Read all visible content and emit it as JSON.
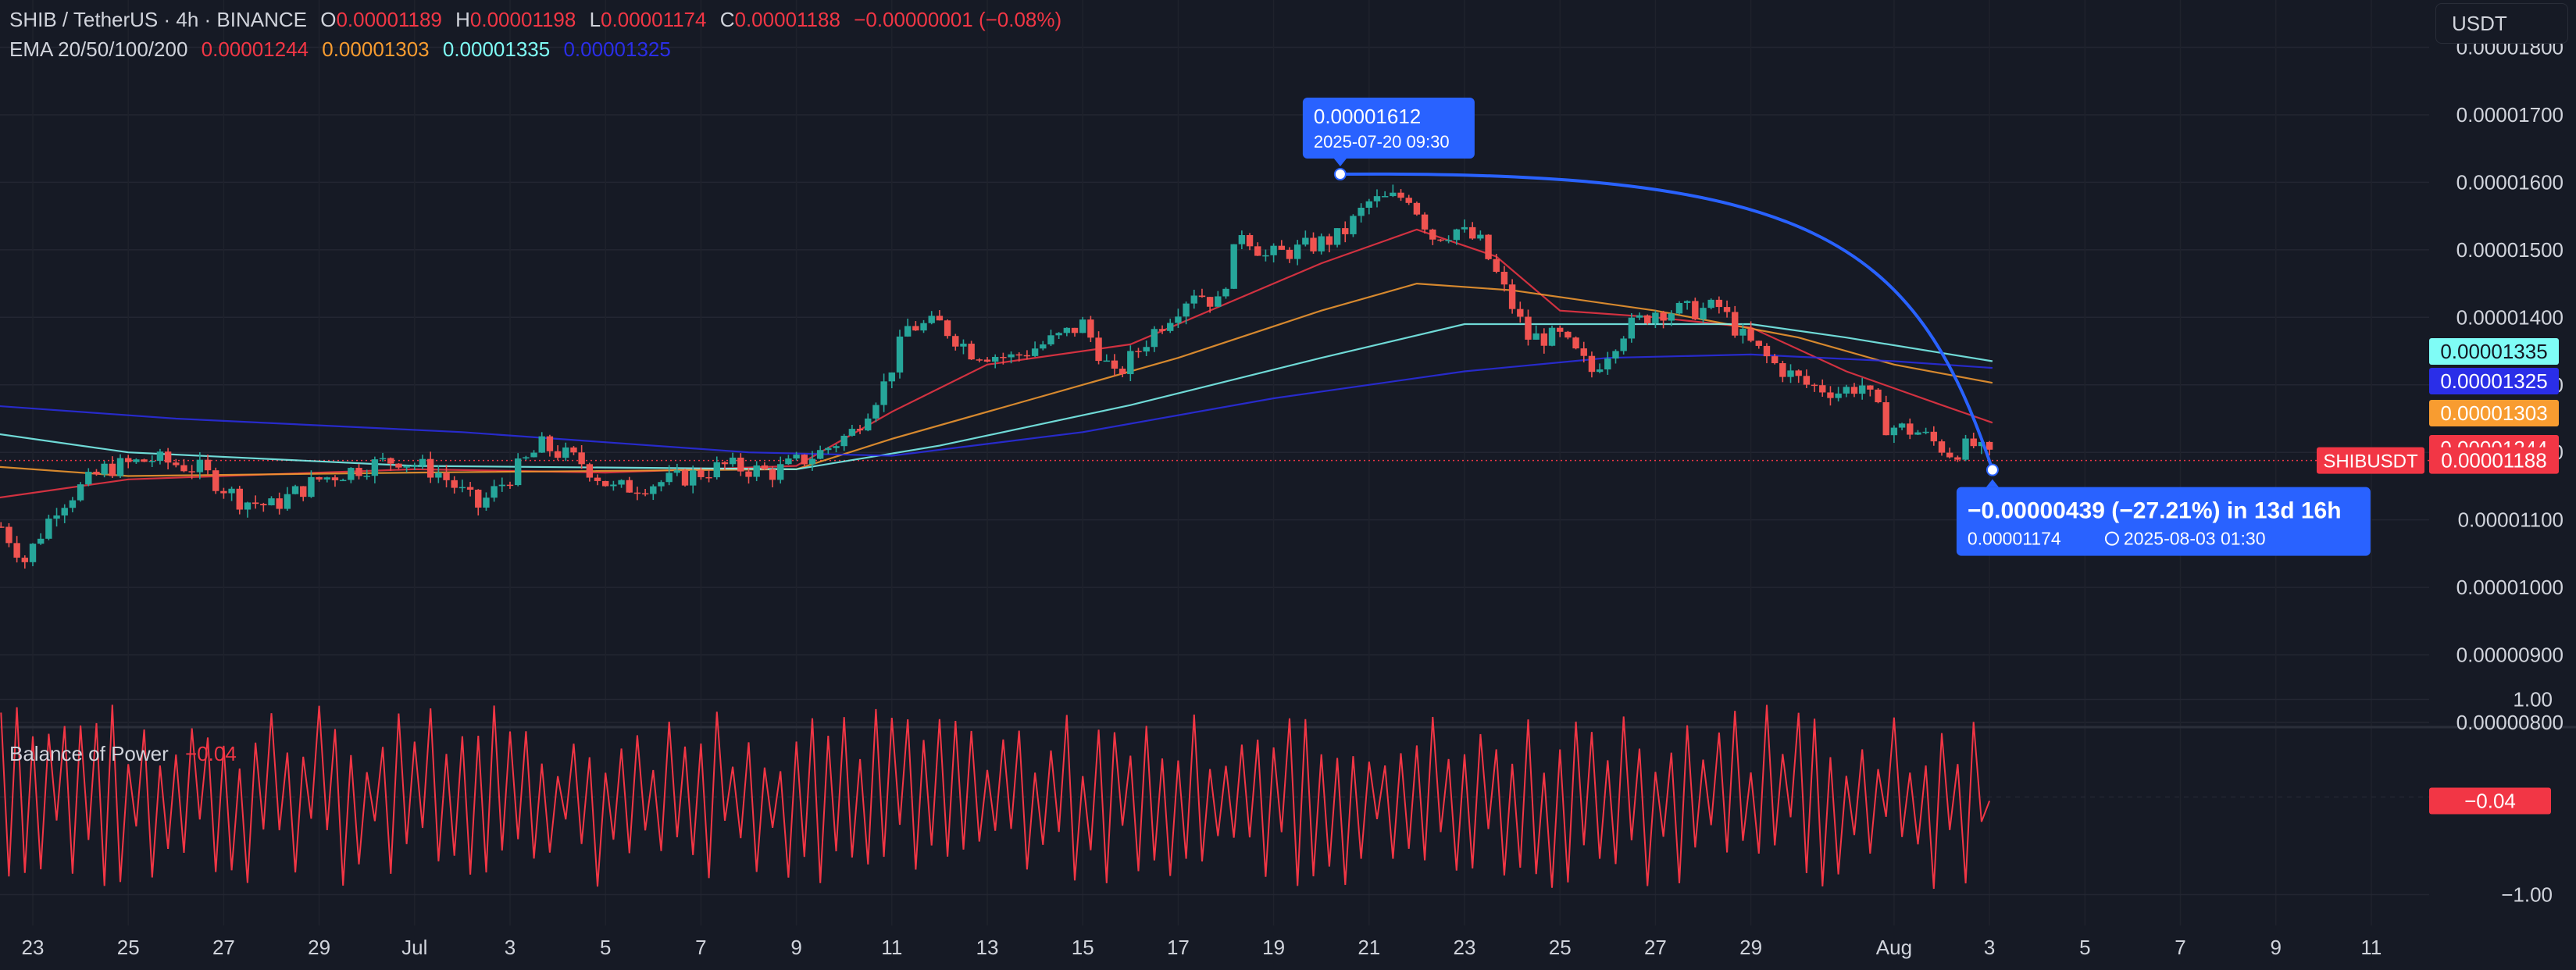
{
  "header": {
    "symbol": "SHIB / TetherUS · 4h · BINANCE",
    "o_label": "O",
    "o_value": "0.00001189",
    "h_label": "H",
    "h_value": "0.00001198",
    "l_label": "L",
    "l_value": "0.00001174",
    "c_label": "C",
    "c_value": "0.00001188",
    "change": "−0.00000001 (−0.08%)",
    "ema_label": "EMA 20/50/100/200",
    "ema20": "0.00001244",
    "ema50": "0.00001303",
    "ema100": "0.00001335",
    "ema200": "0.00001325"
  },
  "currency_button": "USDT",
  "bop": {
    "label": "Balance of Power",
    "value": "−0.04",
    "badge": "−0.04"
  },
  "colors": {
    "background": "#161a25",
    "up": "#26a69a",
    "down": "#ef5350",
    "ema20": "#f23645",
    "ema50": "#f89c30",
    "ema100": "#7ffcf6",
    "ema200": "#2a2ee8",
    "measure": "#2962ff",
    "bop": "#f23645"
  },
  "chart_data": [
    {
      "type": "candlestick",
      "title": "SHIB / TetherUS · 4h · BINANCE",
      "y_axis": [
        "0.00001800",
        "0.00001700",
        "0.00001600",
        "0.00001500",
        "0.00001400",
        "0.00001300",
        "0.00001200",
        "0.00001100",
        "0.00001000",
        "0.00000900",
        "0.00000800"
      ],
      "ylim": [
        8e-06,
        1.87e-05
      ],
      "x_axis": [
        "23",
        "25",
        "27",
        "29",
        "Jul",
        "3",
        "5",
        "7",
        "9",
        "11",
        "13",
        "15",
        "17",
        "19",
        "21",
        "23",
        "25",
        "27",
        "29",
        "Aug",
        "3",
        "5",
        "7",
        "9",
        "11"
      ],
      "x_dates": [
        "2025-06-23",
        "2025-06-25",
        "2025-06-27",
        "2025-06-29",
        "2025-07-01",
        "2025-07-03",
        "2025-07-05",
        "2025-07-07",
        "2025-07-09",
        "2025-07-11",
        "2025-07-13",
        "2025-07-15",
        "2025-07-17",
        "2025-07-19",
        "2025-07-21",
        "2025-07-23",
        "2025-07-25",
        "2025-07-27",
        "2025-07-29",
        "2025-08-01",
        "2025-08-03",
        "2025-08-05",
        "2025-08-07",
        "2025-08-09",
        "2025-08-11"
      ],
      "close_anchors": [
        [
          "2025-06-22 08:00",
          1.09e-05
        ],
        [
          "2025-06-22 20:00",
          1.04e-05
        ],
        [
          "2025-06-23 12:00",
          1.12e-05
        ],
        [
          "2025-06-24 12:00",
          1.175e-05
        ],
        [
          "2025-06-25 12:00",
          1.19e-05
        ],
        [
          "2025-06-26 12:00",
          1.175e-05
        ],
        [
          "2025-06-27 08:00",
          1.13e-05
        ],
        [
          "2025-06-28 00:00",
          1.12e-05
        ],
        [
          "2025-06-29 00:00",
          1.16e-05
        ],
        [
          "2025-06-30 00:00",
          1.18e-05
        ],
        [
          "2025-06-30 16:00",
          1.19e-05
        ],
        [
          "2025-07-01 12:00",
          1.17e-05
        ],
        [
          "2025-07-02 08:00",
          1.12e-05
        ],
        [
          "2025-07-03 00:00",
          1.165e-05
        ],
        [
          "2025-07-03 16:00",
          1.21e-05
        ],
        [
          "2025-07-04 12:00",
          1.185e-05
        ],
        [
          "2025-07-05 04:00",
          1.145e-05
        ],
        [
          "2025-07-06 12:00",
          1.16e-05
        ],
        [
          "2025-07-07 12:00",
          1.18e-05
        ],
        [
          "2025-07-08 12:00",
          1.17e-05
        ],
        [
          "2025-07-09 12:00",
          1.2e-05
        ],
        [
          "2025-07-10 04:00",
          1.23e-05
        ],
        [
          "2025-07-10 20:00",
          1.3e-05
        ],
        [
          "2025-07-11 08:00",
          1.385e-05
        ],
        [
          "2025-07-12 00:00",
          1.39e-05
        ],
        [
          "2025-07-12 16:00",
          1.35e-05
        ],
        [
          "2025-07-13 12:00",
          1.34e-05
        ],
        [
          "2025-07-14 12:00",
          1.37e-05
        ],
        [
          "2025-07-15 00:00",
          1.39e-05
        ],
        [
          "2025-07-15 16:00",
          1.31e-05
        ],
        [
          "2025-07-16 12:00",
          1.38e-05
        ],
        [
          "2025-07-17 08:00",
          1.44e-05
        ],
        [
          "2025-07-17 20:00",
          1.42e-05
        ],
        [
          "2025-07-18 08:00",
          1.53e-05
        ],
        [
          "2025-07-18 20:00",
          1.49e-05
        ],
        [
          "2025-07-19 12:00",
          1.5e-05
        ],
        [
          "2025-07-20 09:30",
          1.52e-05
        ],
        [
          "2025-07-21 00:00",
          1.57e-05
        ],
        [
          "2025-07-21 20:00",
          1.58e-05
        ],
        [
          "2025-07-22 08:00",
          1.52e-05
        ],
        [
          "2025-07-22 20:00",
          1.53e-05
        ],
        [
          "2025-07-23 08:00",
          1.51e-05
        ],
        [
          "2025-07-23 20:00",
          1.44e-05
        ],
        [
          "2025-07-24 08:00",
          1.37e-05
        ],
        [
          "2025-07-25 00:00",
          1.37e-05
        ],
        [
          "2025-07-25 16:00",
          1.32e-05
        ],
        [
          "2025-07-26 08:00",
          1.38e-05
        ],
        [
          "2025-07-27 00:00",
          1.41e-05
        ],
        [
          "2025-07-27 20:00",
          1.41e-05
        ],
        [
          "2025-07-28 08:00",
          1.415e-05
        ],
        [
          "2025-07-28 20:00",
          1.37e-05
        ],
        [
          "2025-07-29 12:00",
          1.33e-05
        ],
        [
          "2025-07-30 04:00",
          1.3e-05
        ],
        [
          "2025-07-30 20:00",
          1.29e-05
        ],
        [
          "2025-07-31 08:00",
          1.3e-05
        ],
        [
          "2025-07-31 20:00",
          1.24e-05
        ],
        [
          "2025-08-01 12:00",
          1.23e-05
        ],
        [
          "2025-08-02 04:00",
          1.2e-05
        ],
        [
          "2025-08-02 16:00",
          1.21e-05
        ],
        [
          "2025-08-03 01:30",
          1.188e-05
        ]
      ],
      "ema_anchors": {
        "EMA 20": [
          [
            "2025-06-22 00:00",
            1.13e-05
          ],
          [
            "2025-06-25 00:00",
            1.16e-05
          ],
          [
            "2025-07-01 00:00",
            1.175e-05
          ],
          [
            "2025-07-05 00:00",
            1.17e-05
          ],
          [
            "2025-07-09 00:00",
            1.18e-05
          ],
          [
            "2025-07-11 00:00",
            1.26e-05
          ],
          [
            "2025-07-13 00:00",
            1.33e-05
          ],
          [
            "2025-07-16 00:00",
            1.36e-05
          ],
          [
            "2025-07-18 00:00",
            1.42e-05
          ],
          [
            "2025-07-20 00:00",
            1.48e-05
          ],
          [
            "2025-07-22 00:00",
            1.53e-05
          ],
          [
            "2025-07-23 16:00",
            1.49e-05
          ],
          [
            "2025-07-25 00:00",
            1.41e-05
          ],
          [
            "2025-07-27 00:00",
            1.4e-05
          ],
          [
            "2025-07-29 00:00",
            1.385e-05
          ],
          [
            "2025-07-31 00:00",
            1.32e-05
          ],
          [
            "2025-08-02 00:00",
            1.27e-05
          ],
          [
            "2025-08-03 01:30",
            1.244e-05
          ]
        ],
        "EMA 50": [
          [
            "2025-06-22 00:00",
            1.18e-05
          ],
          [
            "2025-06-25 00:00",
            1.165e-05
          ],
          [
            "2025-07-01 00:00",
            1.17e-05
          ],
          [
            "2025-07-09 00:00",
            1.175e-05
          ],
          [
            "2025-07-11 00:00",
            1.22e-05
          ],
          [
            "2025-07-14 00:00",
            1.28e-05
          ],
          [
            "2025-07-17 00:00",
            1.34e-05
          ],
          [
            "2025-07-20 00:00",
            1.41e-05
          ],
          [
            "2025-07-22 00:00",
            1.45e-05
          ],
          [
            "2025-07-24 00:00",
            1.44e-05
          ],
          [
            "2025-07-27 00:00",
            1.41e-05
          ],
          [
            "2025-07-30 00:00",
            1.37e-05
          ],
          [
            "2025-08-01 00:00",
            1.33e-05
          ],
          [
            "2025-08-03 01:30",
            1.303e-05
          ]
        ],
        "EMA 100": [
          [
            "2025-06-22 00:00",
            1.23e-05
          ],
          [
            "2025-06-25 00:00",
            1.2e-05
          ],
          [
            "2025-07-01 00:00",
            1.18e-05
          ],
          [
            "2025-07-09 00:00",
            1.175e-05
          ],
          [
            "2025-07-12 00:00",
            1.21e-05
          ],
          [
            "2025-07-16 00:00",
            1.27e-05
          ],
          [
            "2025-07-20 00:00",
            1.34e-05
          ],
          [
            "2025-07-23 00:00",
            1.39e-05
          ],
          [
            "2025-07-26 00:00",
            1.39e-05
          ],
          [
            "2025-07-29 00:00",
            1.39e-05
          ],
          [
            "2025-07-31 00:00",
            1.37e-05
          ],
          [
            "2025-08-03 01:30",
            1.335e-05
          ]
        ],
        "EMA 200": [
          [
            "2025-06-22 00:00",
            1.27e-05
          ],
          [
            "2025-06-26 00:00",
            1.25e-05
          ],
          [
            "2025-07-02 00:00",
            1.23e-05
          ],
          [
            "2025-07-08 00:00",
            1.2e-05
          ],
          [
            "2025-07-11 00:00",
            1.195e-05
          ],
          [
            "2025-07-15 00:00",
            1.23e-05
          ],
          [
            "2025-07-19 00:00",
            1.28e-05
          ],
          [
            "2025-07-23 00:00",
            1.32e-05
          ],
          [
            "2025-07-26 00:00",
            1.34e-05
          ],
          [
            "2025-07-29 00:00",
            1.345e-05
          ],
          [
            "2025-08-01 00:00",
            1.335e-05
          ],
          [
            "2025-08-03 01:30",
            1.325e-05
          ]
        ]
      },
      "last_price": {
        "label": "SHIBUSDT",
        "value": "0.00001188"
      },
      "price_tags": [
        {
          "value": "0.00001335",
          "color": "#7ffcf6"
        },
        {
          "value": "0.00001325",
          "color": "#2a2ee8"
        },
        {
          "value": "0.00001303",
          "color": "#f89c30"
        },
        {
          "value": "0.00001244",
          "color": "#f23645"
        }
      ],
      "measurement": {
        "start_price": 1.612e-05,
        "start_date": "2025-07-20 09:30",
        "start_label": "0.00001612",
        "start_time_label": "2025-07-20 09:30",
        "end_price": 1.174e-05,
        "end_date": "2025-08-03 01:30",
        "result": "−0.00000439 (−27.21%) in 13d 16h",
        "end_label": "0.00001174",
        "end_time_label": "2025-08-03  01:30"
      }
    },
    {
      "type": "line",
      "title": "Balance of Power",
      "y_axis": [
        "1.00",
        "−1.00"
      ],
      "ylim": [
        -1.1,
        1.1
      ],
      "last_value": -0.04
    }
  ]
}
